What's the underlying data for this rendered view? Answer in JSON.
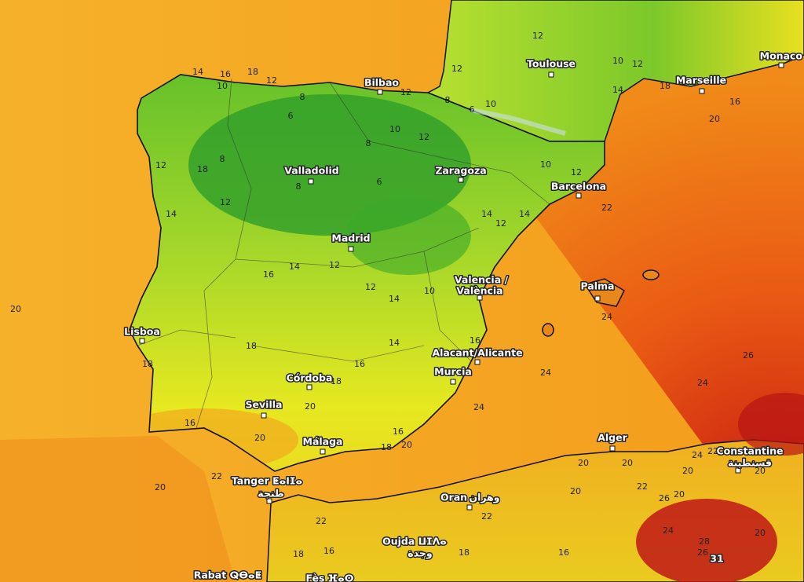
{
  "cities": [
    {
      "name": "Monaco"
    },
    {
      "name": "Toulouse"
    },
    {
      "name": "Marseille"
    },
    {
      "name": "Bilbao"
    },
    {
      "name": "Valladolid"
    },
    {
      "name": "Zaragoza"
    },
    {
      "name": "Barcelona"
    },
    {
      "name": "Madrid"
    },
    {
      "name": "Valencia /",
      "alt": "València"
    },
    {
      "name": "Palma"
    },
    {
      "name": "Lisboa"
    },
    {
      "name": "Alacant/Alicante"
    },
    {
      "name": "Murcia"
    },
    {
      "name": "Córdoba"
    },
    {
      "name": "Sevilla"
    },
    {
      "name": "Málaga"
    },
    {
      "name": "Alger"
    },
    {
      "name": "Constantine",
      "alt": "قسنطينة"
    },
    {
      "name": "Tanger ⵟⴰⵏⵊⴰ",
      "alt": "طنجة"
    },
    {
      "name": "Oran",
      "alt": "وهران"
    },
    {
      "name": "Oujda ⵡⵊⴷⴰ",
      "alt": "وجدة"
    },
    {
      "name": "Rabat ⵕⴱⴰⵟ"
    },
    {
      "name": "Fès ⴼⴰⵙ"
    }
  ],
  "temperature_labels": [
    14,
    16,
    18,
    12,
    10,
    8,
    6,
    12,
    8,
    6,
    10,
    12,
    12,
    10,
    12,
    14,
    18,
    14,
    16,
    20,
    12,
    10,
    8,
    8,
    18,
    12,
    12,
    14,
    8,
    6,
    10,
    12,
    12,
    14,
    14,
    22,
    16,
    14,
    12,
    12,
    14,
    10,
    24,
    18,
    16,
    14,
    16,
    18,
    24,
    26,
    24,
    20,
    20,
    16,
    16,
    18,
    20,
    24,
    20,
    18,
    20,
    22,
    22,
    16,
    18,
    18,
    16,
    22,
    20,
    20,
    20,
    22,
    26,
    20,
    20,
    20,
    20,
    24,
    22,
    24,
    28,
    26,
    31
  ]
}
